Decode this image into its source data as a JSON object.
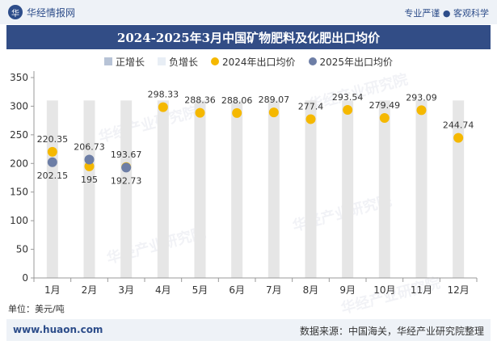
{
  "header": {
    "logo_glyph": "华",
    "brand_name": "华经情报网",
    "slogan": "专业严谨 ● 客观科学"
  },
  "title": "2024-2025年3月中国矿物肥料及化肥出口均价",
  "legend": {
    "items": [
      "正增长",
      "负增长",
      "2024年出口均价",
      "2025年出口均价"
    ]
  },
  "unit_label": "单位：美元/吨",
  "footer": {
    "site": "www.huaon.com",
    "source": "数据来源：中国海关，华经产业研究院整理"
  },
  "watermark_text": "华经产业研究院",
  "watermark_url": "www.huaon.com",
  "colors": {
    "title_bg": "#324d86",
    "series_2024": "#f5b800",
    "series_2025": "#6d7ea6",
    "bar": "#e6e6e6",
    "positive_growth": "#b7c3d6",
    "negative_growth": "#e8eef5"
  },
  "chart_data": {
    "type": "scatter",
    "categories": [
      "1月",
      "2月",
      "3月",
      "4月",
      "5月",
      "6月",
      "7月",
      "8月",
      "9月",
      "10月",
      "11月",
      "12月"
    ],
    "ylim": [
      0,
      350
    ],
    "yticks": [
      0,
      50,
      100,
      150,
      200,
      250,
      300,
      350
    ],
    "grid": false,
    "legend_position": "top",
    "series": [
      {
        "name": "2024年出口均价",
        "values": [
          220.35,
          195,
          193.67,
          298.33,
          288.36,
          288.06,
          289.07,
          277.4,
          293.54,
          279.49,
          293.09,
          244.74
        ]
      },
      {
        "name": "2025年出口均价",
        "values": [
          202.15,
          206.73,
          192.73,
          null,
          null,
          null,
          null,
          null,
          null,
          null,
          null,
          null
        ]
      }
    ],
    "growth_bars": {
      "type": "bar",
      "values_2024_vs_2025": "background columns",
      "height_value": 310
    }
  }
}
